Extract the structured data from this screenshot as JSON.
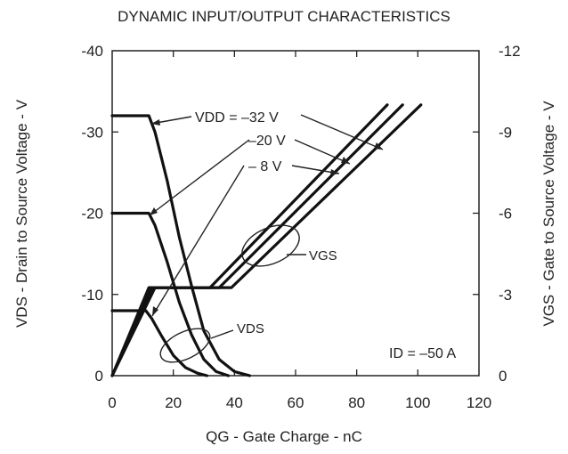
{
  "chart_data": {
    "type": "line",
    "title": "DYNAMIC INPUT/OUTPUT CHARACTERISTICS",
    "xlabel": "QG - Gate Charge - nC",
    "ylabel_left": "VDS - Drain to Source Voltage - V",
    "ylabel_right": "VGS - Gate to Source Voltage - V",
    "xlim": [
      0,
      120
    ],
    "ylim_left": [
      0,
      -40
    ],
    "ylim_right": [
      0,
      -12
    ],
    "x_ticks": [
      "0",
      "20",
      "40",
      "60",
      "80",
      "100",
      "120"
    ],
    "y_left_ticks": [
      "0",
      "-10",
      "-20",
      "-30",
      "-40"
    ],
    "y_right_ticks": [
      "0",
      "-3",
      "-6",
      "-9",
      "-12"
    ],
    "grid": false,
    "series": [
      {
        "name": "VDS VDD = -32 V",
        "axis": "left",
        "x": [
          0,
          12,
          14,
          18,
          22,
          26,
          30,
          35,
          40,
          45
        ],
        "y": [
          -32,
          -32,
          -30,
          -24,
          -17,
          -11,
          -5.5,
          -2,
          -0.5,
          0
        ]
      },
      {
        "name": "VDS VDD = -20 V",
        "axis": "left",
        "x": [
          0,
          12,
          14,
          18,
          22,
          26,
          30,
          34,
          38
        ],
        "y": [
          -20,
          -20,
          -18.5,
          -14,
          -9,
          -5,
          -2,
          -0.5,
          0
        ]
      },
      {
        "name": "VDS VDD = -8 V",
        "axis": "left",
        "x": [
          0,
          11,
          13,
          16,
          20,
          24,
          28,
          31
        ],
        "y": [
          -8,
          -8,
          -7,
          -5,
          -2.5,
          -1,
          -0.3,
          0
        ]
      },
      {
        "name": "VGS VDD = -32 V",
        "axis": "right",
        "x": [
          0,
          14,
          39,
          101
        ],
        "y": [
          0,
          -3.25,
          -3.25,
          -10
        ]
      },
      {
        "name": "VGS VDD = -20 V",
        "axis": "right",
        "x": [
          0,
          13,
          35,
          95
        ],
        "y": [
          0,
          -3.25,
          -3.25,
          -10
        ]
      },
      {
        "name": "VGS VDD = -8 V",
        "axis": "right",
        "x": [
          0,
          12,
          32,
          90
        ],
        "y": [
          0,
          -3.25,
          -3.25,
          -10
        ]
      }
    ],
    "annotations": {
      "vdd_32": "VDD = –32 V",
      "vdd_20": "–20 V",
      "vdd_8": "– 8 V",
      "vgs_label": "VGS",
      "vds_label": "VDS",
      "id_label": "ID = –50 A"
    }
  }
}
